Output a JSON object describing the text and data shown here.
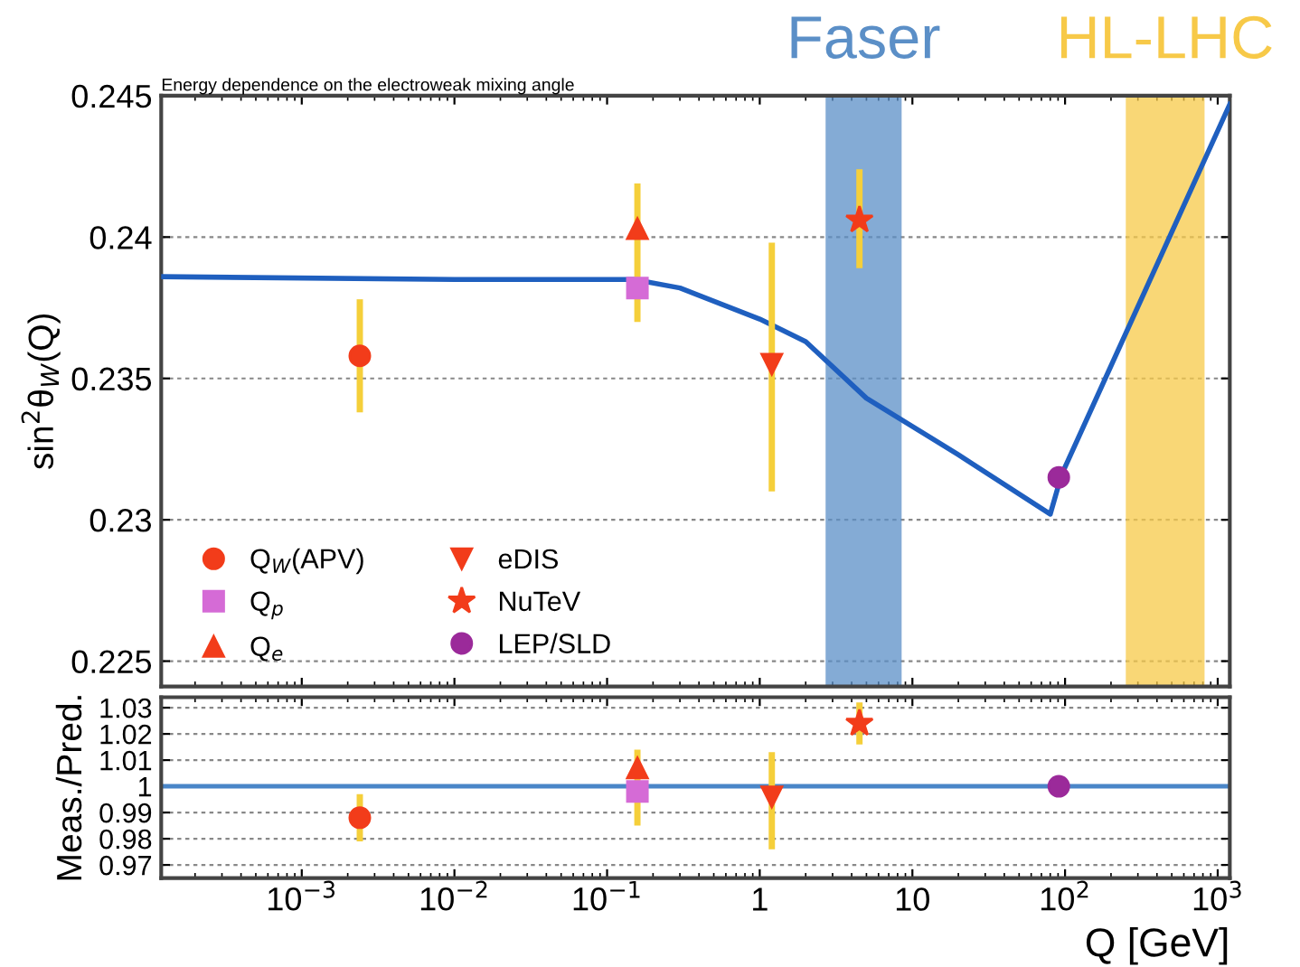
{
  "chart_data": [
    {
      "type": "scatter",
      "title": "Energy dependence on the electroweak mixing angle",
      "ylabel": "sin$^{2}$θ$_{W}$(Q)",
      "log": "x",
      "xlim": [
        0.00012,
        1200
      ],
      "xticks": [
        {
          "value": 0.001,
          "label": null
        },
        {
          "value": 0.01,
          "label": null
        },
        {
          "value": 0.1,
          "label": null
        },
        {
          "value": 1,
          "label": null
        },
        {
          "value": 10,
          "label": null
        },
        {
          "value": 100,
          "label": null
        },
        {
          "value": 1000,
          "label": null
        }
      ],
      "ylim": [
        0.2241,
        0.245
      ],
      "yticks": [
        0.225,
        0.23,
        0.235,
        0.24,
        0.245
      ],
      "tick_labels": "y",
      "grid": "y",
      "legend": "bottom left",
      "bands": [
        {
          "axis": "x",
          "from": 2.7,
          "to": 8.5,
          "label": "Faser",
          "color": "#5b8fc7"
        },
        {
          "axis": "x",
          "from": 250,
          "to": 820,
          "label": "HL-LHC",
          "color": "#f7c948"
        }
      ],
      "series": [
        {
          "type": "line",
          "color": "#1f5fbf",
          "x": [
            0.00012,
            0.01,
            0.15,
            0.3,
            1,
            2,
            5,
            20,
            80,
            95,
            1200
          ],
          "values": [
            0.2386,
            0.2385,
            0.2385,
            0.2382,
            0.2371,
            0.2363,
            0.2343,
            0.2323,
            0.2302,
            0.2316,
            0.2447
          ]
        },
        {
          "name": "Q$_{W}$(APV)",
          "marker": "circle",
          "color": "#f23c1a",
          "x": [
            0.0024
          ],
          "values": [
            0.2358
          ],
          "errors": [
            [
              0.2338,
              0.2378
            ]
          ]
        },
        {
          "name": "Q$_{p}$",
          "marker": "square",
          "color": "#d56bd6",
          "x": [
            0.158
          ],
          "values": [
            0.2382
          ]
        },
        {
          "name": "Q$_{e}$",
          "marker": "triangle",
          "color": "#f23c1a",
          "x": [
            0.158
          ],
          "values": [
            0.2403
          ],
          "errors": [
            [
              0.237,
              0.2419
            ]
          ]
        },
        {
          "name": "eDIS",
          "marker": "triangle_down",
          "color": "#f23c1a",
          "x": [
            1.2
          ],
          "values": [
            0.2355
          ],
          "errors": [
            [
              0.231,
              0.2398
            ]
          ]
        },
        {
          "name": "NuTeV",
          "marker": "star",
          "color": "#f23c1a",
          "x": [
            4.5
          ],
          "values": [
            0.2406
          ],
          "errors": [
            [
              0.2389,
              0.2424
            ]
          ]
        },
        {
          "name": "LEP/SLD",
          "marker": "circle",
          "color": "#9b2a9a",
          "x": [
            91
          ],
          "values": [
            0.2315
          ]
        }
      ]
    },
    {
      "type": "scatter",
      "ylabel": "Meas./Pred.",
      "xlabel": "Q [GeV]",
      "log": "x",
      "xlim": [
        0.00012,
        1200
      ],
      "xticks": [
        {
          "value": 0.001,
          "label": "10$^{−3}$"
        },
        {
          "value": 0.01,
          "label": "10$^{−2}$"
        },
        {
          "value": 0.1,
          "label": "10$^{−1}$"
        },
        {
          "value": 1,
          "label": "1"
        },
        {
          "value": 10,
          "label": "10"
        },
        {
          "value": 100,
          "label": "10$^{2}$"
        },
        {
          "value": 1000,
          "label": "10$^{3}$"
        }
      ],
      "ylim": [
        0.965,
        1.034
      ],
      "yticks": [
        0.97,
        0.98,
        0.99,
        1,
        1.01,
        1.02,
        1.03
      ],
      "grid": "y",
      "ref_lines": [
        {
          "axis": "y",
          "value": 1,
          "color": "#4a86c8"
        }
      ],
      "series": [
        {
          "marker": "circle",
          "color": "#f23c1a",
          "x": [
            0.0024
          ],
          "values": [
            0.988
          ],
          "errors": [
            [
              0.979,
              0.997
            ]
          ]
        },
        {
          "marker": "square",
          "color": "#d56bd6",
          "x": [
            0.158
          ],
          "values": [
            0.998
          ]
        },
        {
          "marker": "triangle",
          "color": "#f23c1a",
          "x": [
            0.158
          ],
          "values": [
            1.007
          ],
          "errors": [
            [
              0.985,
              1.014
            ]
          ]
        },
        {
          "marker": "triangle_down",
          "color": "#f23c1a",
          "x": [
            1.2
          ],
          "values": [
            0.996
          ],
          "errors": [
            [
              0.976,
              1.013
            ]
          ]
        },
        {
          "marker": "star",
          "color": "#f23c1a",
          "x": [
            4.5
          ],
          "values": [
            1.024
          ],
          "errors": [
            [
              1.016,
              1.032
            ]
          ]
        },
        {
          "marker": "circle",
          "color": "#9b2a9a",
          "x": [
            91
          ],
          "values": [
            1.0
          ]
        }
      ]
    }
  ]
}
